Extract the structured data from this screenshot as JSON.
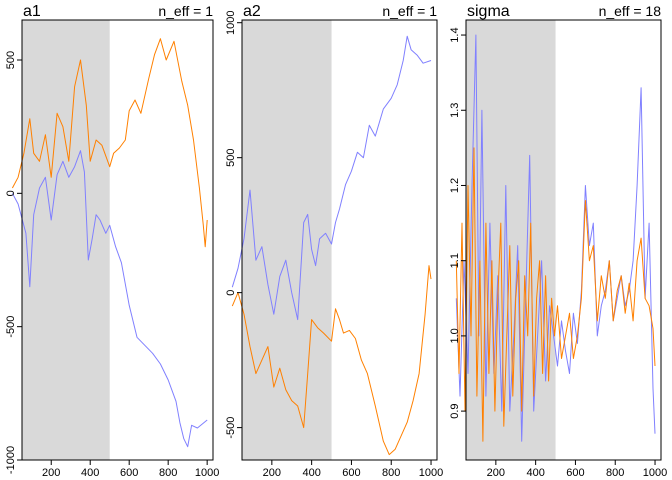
{
  "chart_data": [
    {
      "type": "line",
      "title": "a1",
      "annotation": "n_eff = 1",
      "xlim": [
        50,
        1030
      ],
      "ylim": [
        -1000,
        650
      ],
      "xticks": [
        200,
        400,
        600,
        800,
        1000
      ],
      "yticks": [
        -1000,
        -500,
        0,
        500
      ],
      "warmup_range": [
        1,
        500
      ],
      "grid": false,
      "series": [
        {
          "color": "#8080ff",
          "x": [
            1,
            30,
            70,
            90,
            110,
            140,
            170,
            200,
            230,
            260,
            290,
            320,
            350,
            370,
            390,
            410,
            430,
            450,
            480,
            500,
            530,
            560,
            600,
            640,
            680,
            720,
            760,
            800,
            840,
            860,
            880,
            900,
            920,
            950,
            1000
          ],
          "y": [
            0,
            -40,
            -150,
            -350,
            -80,
            20,
            60,
            -100,
            70,
            120,
            60,
            100,
            160,
            80,
            -250,
            -170,
            -80,
            -100,
            -150,
            -120,
            -200,
            -260,
            -420,
            -540,
            -570,
            -600,
            -640,
            -700,
            -780,
            -860,
            -920,
            -950,
            -870,
            -880,
            -850
          ]
        },
        {
          "color": "#ff8000",
          "x": [
            1,
            30,
            60,
            90,
            110,
            140,
            170,
            200,
            230,
            260,
            290,
            320,
            350,
            380,
            400,
            430,
            460,
            500,
            520,
            550,
            580,
            600,
            630,
            660,
            700,
            730,
            760,
            790,
            830,
            870,
            900,
            930,
            960,
            980,
            990,
            1000
          ],
          "y": [
            20,
            60,
            150,
            280,
            150,
            120,
            220,
            60,
            300,
            250,
            120,
            400,
            500,
            330,
            120,
            200,
            180,
            100,
            150,
            170,
            200,
            310,
            350,
            300,
            430,
            520,
            580,
            500,
            570,
            420,
            330,
            200,
            20,
            -120,
            -200,
            -100
          ]
        }
      ]
    },
    {
      "type": "line",
      "title": "a2",
      "annotation": "n_eff = 1",
      "xlim": [
        50,
        1030
      ],
      "ylim": [
        -620,
        1010
      ],
      "xticks": [
        200,
        400,
        600,
        800,
        1000
      ],
      "yticks": [
        -500,
        0,
        500,
        1000
      ],
      "warmup_range": [
        1,
        500
      ],
      "grid": false,
      "series": [
        {
          "color": "#8080ff",
          "x": [
            1,
            30,
            60,
            90,
            120,
            150,
            180,
            210,
            240,
            270,
            300,
            330,
            360,
            380,
            400,
            420,
            440,
            470,
            500,
            520,
            540,
            570,
            600,
            630,
            660,
            690,
            720,
            760,
            800,
            830,
            860,
            880,
            900,
            930,
            960,
            1000
          ],
          "y": [
            20,
            90,
            200,
            380,
            120,
            170,
            30,
            -80,
            60,
            120,
            0,
            -100,
            260,
            290,
            160,
            100,
            200,
            220,
            180,
            260,
            310,
            400,
            450,
            520,
            500,
            620,
            580,
            680,
            720,
            770,
            860,
            950,
            900,
            880,
            850,
            860
          ]
        },
        {
          "color": "#ff8000",
          "x": [
            1,
            30,
            60,
            90,
            120,
            150,
            180,
            210,
            240,
            270,
            300,
            330,
            360,
            380,
            400,
            430,
            460,
            500,
            520,
            540,
            560,
            590,
            620,
            650,
            680,
            720,
            760,
            790,
            820,
            850,
            880,
            910,
            940,
            970,
            990,
            1000
          ],
          "y": [
            -50,
            0,
            -80,
            -200,
            -300,
            -250,
            -200,
            -350,
            -280,
            -360,
            -400,
            -420,
            -500,
            -300,
            -100,
            -130,
            -150,
            -180,
            -60,
            -100,
            -150,
            -140,
            -170,
            -250,
            -300,
            -420,
            -550,
            -600,
            -580,
            -530,
            -480,
            -400,
            -300,
            -80,
            100,
            50
          ]
        }
      ]
    },
    {
      "type": "line",
      "title": "sigma",
      "annotation": "n_eff = 18",
      "xlim": [
        50,
        1030
      ],
      "ylim": [
        0.835,
        1.42
      ],
      "xticks": [
        200,
        400,
        600,
        800,
        1000
      ],
      "yticks": [
        0.9,
        1.0,
        1.1,
        1.2,
        1.3,
        1.4
      ],
      "warmup_range": [
        1,
        500
      ],
      "grid": false,
      "series": [
        {
          "color": "#8080ff",
          "x": [
            1,
            20,
            40,
            60,
            80,
            100,
            115,
            130,
            150,
            170,
            190,
            210,
            230,
            250,
            270,
            290,
            310,
            330,
            350,
            370,
            390,
            410,
            430,
            450,
            470,
            490,
            510,
            530,
            550,
            570,
            590,
            610,
            630,
            650,
            670,
            690,
            710,
            730,
            750,
            770,
            790,
            810,
            830,
            850,
            870,
            890,
            910,
            930,
            950,
            970,
            990,
            1000
          ],
          "y": [
            1.05,
            0.92,
            1.1,
            0.95,
            1.2,
            1.4,
            1.0,
            1.3,
            0.92,
            1.15,
            0.95,
            1.08,
            0.9,
            1.2,
            0.9,
            1.0,
            1.12,
            0.86,
            1.05,
            1.24,
            0.9,
            1.0,
            1.1,
            0.94,
            1.04,
            1.0,
            0.96,
            1.02,
            0.98,
            0.95,
            1.03,
            0.99,
            1.06,
            1.2,
            1.12,
            1.15,
            1.0,
            1.04,
            1.06,
            1.1,
            1.02,
            1.05,
            1.08,
            1.04,
            1.06,
            1.1,
            1.2,
            1.33,
            1.05,
            1.15,
            0.93,
            0.87
          ]
        },
        {
          "color": "#ff8000",
          "x": [
            1,
            15,
            30,
            45,
            60,
            75,
            90,
            105,
            120,
            135,
            150,
            165,
            180,
            195,
            210,
            225,
            240,
            255,
            270,
            285,
            300,
            315,
            330,
            345,
            360,
            375,
            390,
            405,
            420,
            435,
            450,
            465,
            480,
            495,
            510,
            530,
            550,
            570,
            590,
            610,
            630,
            650,
            670,
            690,
            710,
            730,
            750,
            770,
            790,
            810,
            830,
            850,
            870,
            890,
            910,
            930,
            950,
            970,
            990,
            1000
          ],
          "y": [
            1.1,
            0.95,
            1.15,
            0.9,
            1.2,
            1.0,
            1.25,
            0.92,
            1.1,
            0.86,
            1.15,
            0.95,
            1.1,
            0.9,
            1.05,
            1.15,
            0.88,
            1.0,
            1.12,
            0.92,
            1.05,
            1.1,
            0.9,
            1.08,
            1.0,
            1.15,
            0.92,
            1.05,
            1.1,
            0.95,
            1.08,
            0.94,
            1.05,
            1.0,
            1.04,
            0.97,
            1.0,
            1.03,
            0.97,
            1.0,
            1.05,
            1.18,
            1.1,
            1.12,
            1.02,
            1.08,
            1.05,
            1.1,
            1.02,
            1.06,
            1.08,
            1.03,
            1.07,
            1.02,
            1.1,
            1.13,
            1.05,
            1.04,
            1.01,
            0.96
          ]
        }
      ]
    }
  ]
}
